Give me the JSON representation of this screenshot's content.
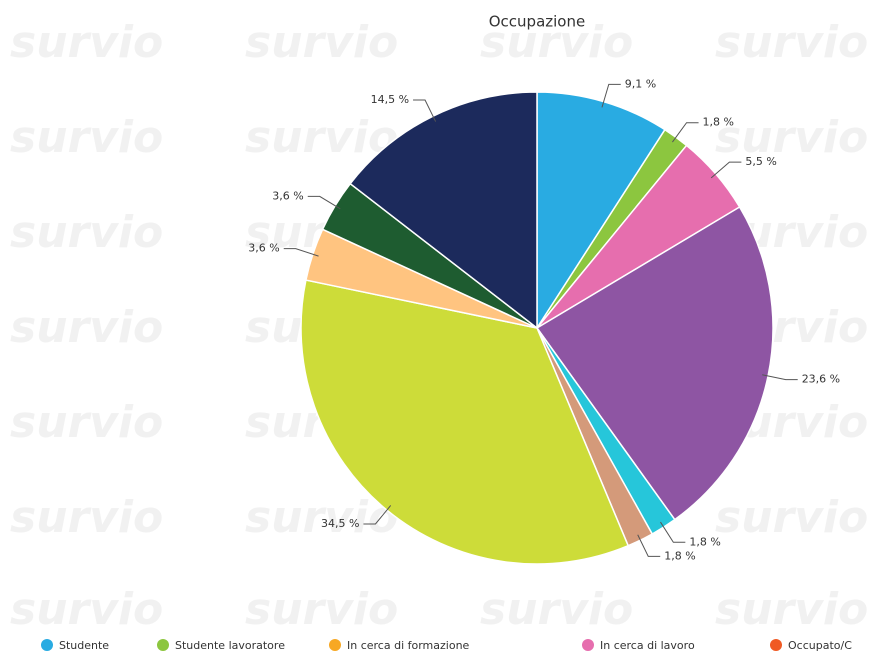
{
  "chart_data": {
    "type": "pie",
    "title": "Occupazione",
    "watermark": "survio",
    "values": [
      9.1,
      1.8,
      5.5,
      23.6,
      1.8,
      1.8,
      34.5,
      3.6,
      3.6,
      14.5
    ],
    "value_labels": [
      "9,1 %",
      "1,8 %",
      "5,5 %",
      "23,6 %",
      "1,8 %",
      "1,8 %",
      "34,5 %",
      "3,6 %",
      "3,6 %",
      "14,5 %"
    ],
    "colors": [
      "#29abe2",
      "#8cc63f",
      "#e66eae",
      "#8e55a3",
      "#26c6da",
      "#d49a7a",
      "#cddc39",
      "#ffc480",
      "#1e5c30",
      "#1c2a5c"
    ],
    "legend": [
      {
        "name": "Studente",
        "color": "#29abe2"
      },
      {
        "name": "Studente lavoratore",
        "color": "#8cc63f"
      },
      {
        "name": "In cerca di formazione",
        "color": "#f7a823"
      },
      {
        "name": "In cerca di lavoro",
        "color": "#e66eae"
      },
      {
        "name": "Occupato/C",
        "color": "#f05a24"
      }
    ]
  }
}
